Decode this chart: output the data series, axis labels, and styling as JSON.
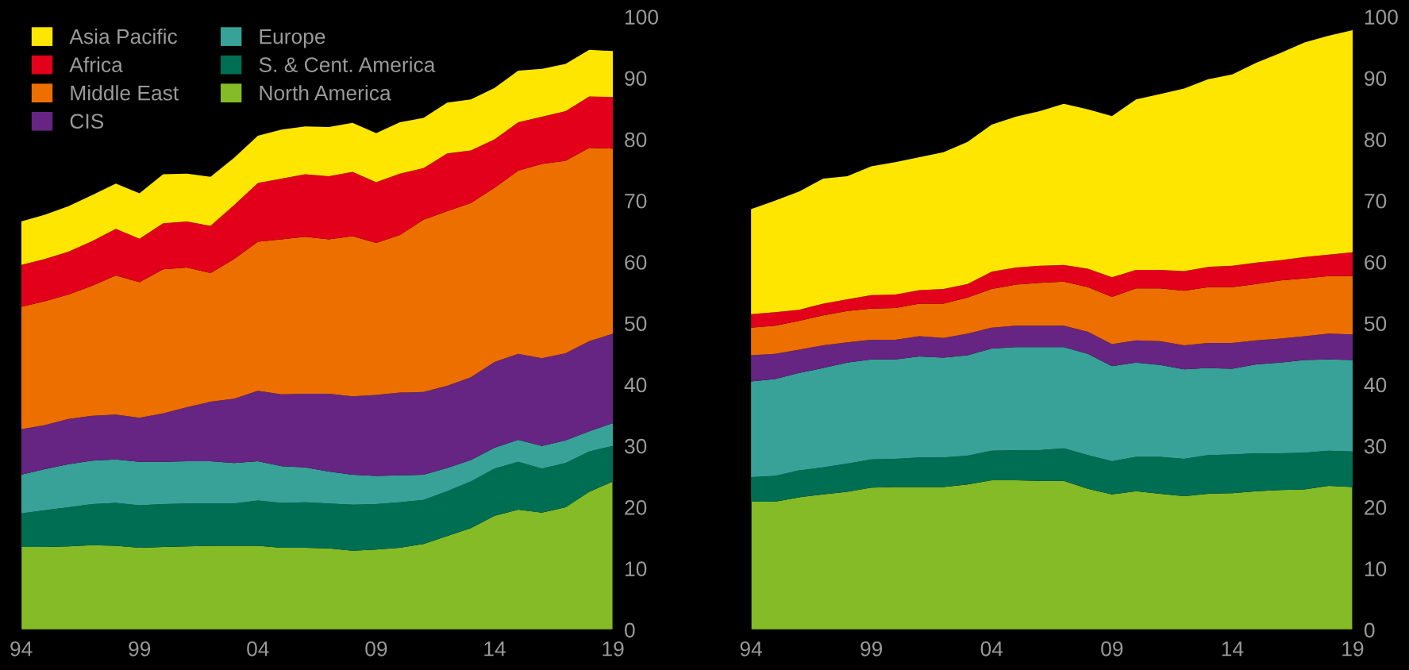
{
  "chart_data": [
    {
      "type": "area",
      "stacked": true,
      "legend": "top left",
      "grid": false,
      "x": [
        1994,
        1995,
        1996,
        1997,
        1998,
        1999,
        2000,
        2001,
        2002,
        2003,
        2004,
        2005,
        2006,
        2007,
        2008,
        2009,
        2010,
        2011,
        2012,
        2013,
        2014,
        2015,
        2016,
        2017,
        2018,
        2019
      ],
      "xlim": [
        1994,
        2019
      ],
      "xticks": [
        {
          "value": 1994,
          "label": "94"
        },
        {
          "value": 1999,
          "label": "99"
        },
        {
          "value": 2004,
          "label": "04"
        },
        {
          "value": 2009,
          "label": "09"
        },
        {
          "value": 2014,
          "label": "14"
        },
        {
          "value": 2019,
          "label": "19"
        }
      ],
      "ylim": [
        0,
        100
      ],
      "yticks": [
        0,
        10,
        20,
        30,
        40,
        50,
        60,
        70,
        80,
        90,
        100
      ],
      "series": [
        {
          "name": "North America",
          "color": "#84bb27",
          "values": [
            13.5,
            13.5,
            13.6,
            13.8,
            13.7,
            13.4,
            13.5,
            13.6,
            13.7,
            13.7,
            13.7,
            13.4,
            13.4,
            13.3,
            12.9,
            13.1,
            13.4,
            14.0,
            15.3,
            16.6,
            18.6,
            19.6,
            19.1,
            20.0,
            22.5,
            24.2
          ]
        },
        {
          "name": "S. & Cent. America",
          "color": "#006e52",
          "values": [
            5.5,
            6.0,
            6.4,
            6.7,
            7.0,
            6.9,
            7.0,
            7.0,
            6.9,
            6.9,
            7.4,
            7.3,
            7.4,
            7.3,
            7.5,
            7.4,
            7.4,
            7.2,
            7.3,
            7.6,
            7.7,
            7.8,
            7.2,
            7.2,
            6.6,
            5.8
          ]
        },
        {
          "name": "Europe",
          "color": "#38a298",
          "values": [
            6.3,
            6.7,
            7.0,
            7.1,
            7.1,
            7.1,
            6.9,
            6.9,
            6.9,
            6.6,
            6.4,
            6.0,
            5.7,
            5.2,
            4.9,
            4.6,
            4.4,
            4.1,
            3.8,
            3.5,
            3.4,
            3.6,
            3.7,
            3.7,
            3.3,
            3.7
          ]
        },
        {
          "name": "CIS",
          "color": "#662483",
          "values": [
            7.4,
            7.2,
            7.4,
            7.3,
            7.3,
            7.2,
            7.9,
            8.8,
            9.7,
            10.5,
            11.5,
            11.7,
            12.0,
            12.7,
            12.8,
            13.2,
            13.5,
            13.5,
            13.4,
            13.5,
            14.0,
            14.0,
            14.3,
            14.2,
            14.7,
            14.6
          ]
        },
        {
          "name": "Middle East",
          "color": "#ec6f00",
          "values": [
            20.0,
            20.2,
            20.3,
            21.2,
            22.7,
            22.1,
            23.5,
            22.8,
            21.0,
            22.8,
            24.3,
            25.3,
            25.6,
            25.2,
            26.1,
            24.8,
            25.7,
            28.1,
            28.5,
            28.4,
            28.4,
            29.9,
            31.7,
            31.4,
            31.5,
            30.2
          ]
        },
        {
          "name": "Africa",
          "color": "#e2001a",
          "values": [
            6.8,
            6.9,
            7.0,
            7.3,
            7.6,
            7.1,
            7.5,
            7.5,
            7.7,
            8.8,
            9.6,
            9.9,
            10.2,
            10.3,
            10.5,
            9.9,
            10.0,
            8.4,
            9.4,
            8.6,
            7.9,
            7.9,
            7.7,
            8.1,
            8.4,
            8.4
          ]
        },
        {
          "name": "Asia Pacific",
          "color": "#ffe600",
          "values": [
            7.1,
            7.2,
            7.4,
            7.5,
            7.4,
            7.4,
            8.0,
            7.8,
            8.0,
            7.7,
            7.7,
            8.0,
            7.8,
            8.0,
            8.0,
            8.0,
            8.4,
            8.2,
            8.3,
            8.3,
            8.4,
            8.4,
            7.8,
            7.7,
            7.6,
            7.5
          ]
        }
      ]
    },
    {
      "type": "area",
      "stacked": true,
      "grid": false,
      "x": [
        1994,
        1995,
        1996,
        1997,
        1998,
        1999,
        2000,
        2001,
        2002,
        2003,
        2004,
        2005,
        2006,
        2007,
        2008,
        2009,
        2010,
        2011,
        2012,
        2013,
        2014,
        2015,
        2016,
        2017,
        2018,
        2019
      ],
      "xlim": [
        1994,
        2019
      ],
      "xticks": [
        {
          "value": 1994,
          "label": "94"
        },
        {
          "value": 1999,
          "label": "99"
        },
        {
          "value": 2004,
          "label": "04"
        },
        {
          "value": 2009,
          "label": "09"
        },
        {
          "value": 2014,
          "label": "14"
        },
        {
          "value": 2019,
          "label": "19"
        }
      ],
      "ylim": [
        0,
        100
      ],
      "yticks": [
        0,
        10,
        20,
        30,
        40,
        50,
        60,
        70,
        80,
        90,
        100
      ],
      "series": [
        {
          "color": "#84bb27",
          "values": [
            20.9,
            20.9,
            21.6,
            22.1,
            22.5,
            23.2,
            23.3,
            23.3,
            23.3,
            23.7,
            24.4,
            24.4,
            24.3,
            24.3,
            23.0,
            22.1,
            22.6,
            22.2,
            21.8,
            22.2,
            22.3,
            22.6,
            22.8,
            22.9,
            23.5,
            23.3
          ]
        },
        {
          "color": "#006e52",
          "values": [
            4.0,
            4.2,
            4.4,
            4.4,
            4.6,
            4.6,
            4.6,
            4.8,
            4.8,
            4.7,
            4.8,
            4.9,
            5.0,
            5.3,
            5.5,
            5.4,
            5.6,
            6.0,
            6.1,
            6.3,
            6.3,
            6.2,
            6.0,
            6.0,
            5.7,
            5.8
          ]
        },
        {
          "color": "#38a298",
          "values": [
            15.6,
            15.8,
            15.9,
            16.2,
            16.5,
            16.3,
            16.2,
            16.5,
            16.3,
            16.4,
            16.7,
            16.8,
            16.8,
            16.5,
            16.5,
            15.5,
            15.4,
            15.0,
            14.6,
            14.2,
            14.0,
            14.5,
            14.8,
            15.1,
            14.9,
            14.9
          ]
        },
        {
          "color": "#662483",
          "values": [
            4.3,
            4.1,
            3.8,
            3.7,
            3.3,
            3.2,
            3.2,
            3.3,
            3.2,
            3.5,
            3.4,
            3.5,
            3.5,
            3.5,
            3.6,
            3.6,
            3.6,
            3.9,
            3.9,
            4.1,
            4.2,
            3.9,
            3.9,
            3.9,
            4.2,
            4.2
          ]
        },
        {
          "color": "#ec6f00",
          "values": [
            4.5,
            4.6,
            4.7,
            4.9,
            5.1,
            5.1,
            5.2,
            5.3,
            5.6,
            5.9,
            6.3,
            6.7,
            7.0,
            7.2,
            7.3,
            7.7,
            8.5,
            8.6,
            8.9,
            9.1,
            9.1,
            9.2,
            9.5,
            9.4,
            9.4,
            9.5
          ]
        },
        {
          "color": "#e2001a",
          "values": [
            2.2,
            2.2,
            1.8,
            1.9,
            1.9,
            2.2,
            2.2,
            2.2,
            2.4,
            2.2,
            2.8,
            2.8,
            2.8,
            2.7,
            3.0,
            3.2,
            3.0,
            3.0,
            3.2,
            3.3,
            3.5,
            3.5,
            3.3,
            3.5,
            3.5,
            3.9
          ]
        },
        {
          "color": "#ffe600",
          "values": [
            17.1,
            18.2,
            19.3,
            20.4,
            20.1,
            21.0,
            21.6,
            21.7,
            22.3,
            23.2,
            24.0,
            24.6,
            25.2,
            26.3,
            26.0,
            26.3,
            27.8,
            28.7,
            29.8,
            30.6,
            31.2,
            32.6,
            33.8,
            35.0,
            35.7,
            36.2
          ]
        }
      ]
    }
  ]
}
